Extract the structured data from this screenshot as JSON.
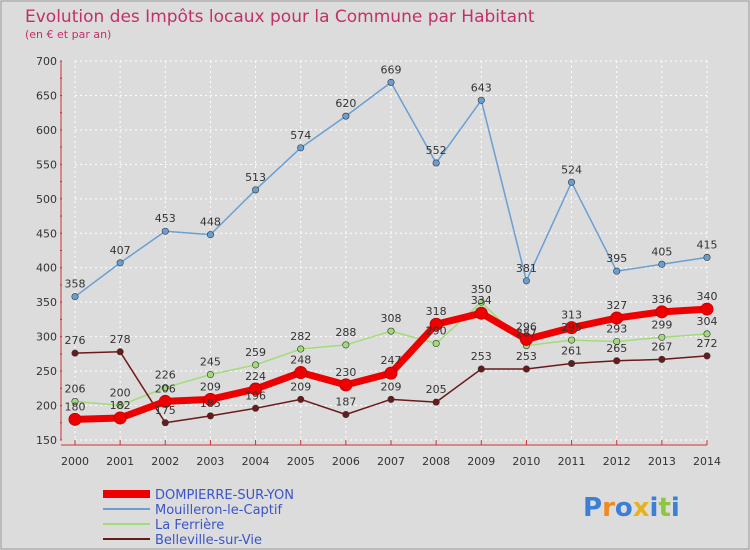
{
  "chart_data": {
    "type": "line",
    "title": "Evolution des Impôts locaux pour la Commune par Habitant",
    "subtitle": "(en € et par an)",
    "x": [
      "2000",
      "2001",
      "2002",
      "2003",
      "2004",
      "2005",
      "2006",
      "2007",
      "2008",
      "2009",
      "2010",
      "2011",
      "2012",
      "2013",
      "2014"
    ],
    "ylim": [
      150,
      700
    ],
    "yticks": [
      150,
      200,
      250,
      300,
      350,
      400,
      450,
      500,
      550,
      600,
      650,
      700
    ],
    "grid": true,
    "legend_position": "bottom-left",
    "series": [
      {
        "name": "DOMPIERRE-SUR-YON",
        "color": "#ee0000",
        "values": [
          180,
          182,
          206,
          209,
          224,
          248,
          230,
          247,
          318,
          334,
          296,
          313,
          327,
          336,
          340
        ]
      },
      {
        "name": "Mouilleron-le-Captif",
        "color": "#6a9fd4",
        "values": [
          358,
          407,
          453,
          448,
          513,
          574,
          620,
          669,
          552,
          643,
          381,
          524,
          395,
          405,
          415
        ]
      },
      {
        "name": "La Ferrière",
        "color": "#a2dc78",
        "values": [
          206,
          200,
          226,
          245,
          259,
          282,
          288,
          308,
          290,
          350,
          287,
          295,
          293,
          299,
          304
        ]
      },
      {
        "name": "Belleville-sur-Vie",
        "color": "#6b1a1a",
        "values": [
          276,
          278,
          175,
          185,
          196,
          209,
          187,
          209,
          205,
          253,
          253,
          261,
          265,
          267,
          272
        ]
      }
    ]
  },
  "logo": {
    "text": "Proxiti",
    "letters": [
      "P",
      "r",
      "o",
      "x",
      "i",
      "t",
      "i"
    ],
    "colors": [
      "#3b7fd6",
      "#f08a1c",
      "#3b7fd6",
      "#e8b21c",
      "#3b7fd6",
      "#8dc63f",
      "#3b7fd6"
    ]
  }
}
